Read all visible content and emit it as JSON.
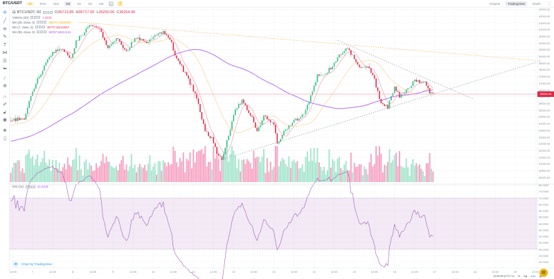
{
  "toolbar": {
    "symbol": "BTC/USDT",
    "type_pill": "1h",
    "time_label": "Time",
    "intervals": [
      "15m",
      "1H",
      "4H",
      "1D",
      "1W"
    ],
    "selected_interval": "1H"
  },
  "view_tabs": [
    "Original",
    "TradingView",
    "Depth"
  ],
  "selected_view": "TradingView",
  "legend": {
    "title": "BTCUSDT, 60",
    "o_label": "O",
    "o": "36713.85",
    "h_label": "H",
    "h": "36717.00",
    "l_label": "L",
    "l": "36250.00",
    "c_label": "C",
    "c": "36264.96",
    "volume_label": "Volume (20)",
    "volume": "1.342K",
    "ma25_label": "MA (25, close, 0)",
    "ma25": "36870.74600000",
    "ma7_label": "MA (7, close, 0)",
    "ma7": "36770.36142857",
    "ma99_label": "MA (99, close, 0)",
    "ma99": "36757.84212121",
    "rsi_label": "RSI (14)",
    "rsi": "42.2318"
  },
  "colors": {
    "up": "#2ebd85",
    "down": "#e0294a",
    "vol_up": "#a3e4cc",
    "vol_down": "#f7a0c0",
    "ma7": "#f4a3ad",
    "ma25": "#f8d596",
    "ma99": "#b46ef5",
    "rsi": "#a05cb8",
    "last_price_line": "#f5a6b1",
    "trend_orange": "#f5b25a",
    "trend_gray": "#8e9ba3"
  },
  "chart_data": {
    "type": "candlestick",
    "symbol": "BTCUSDT",
    "interval": "60",
    "last_price": "36264.96",
    "price_ticks": [
      "42500.00",
      "42000.00",
      "41500.00",
      "41000.00",
      "40500.00",
      "40000.00",
      "39500.00",
      "39000.00",
      "38500.00",
      "38000.00",
      "37500.00",
      "37000.00",
      "36500.00",
      "36000.00",
      "35500.00",
      "35000.00",
      "34500.00",
      "34000.00",
      "33500.00",
      "33000.00",
      "32500.00",
      "32000.00",
      "31500.00",
      "31000.00",
      "30500.00",
      "30000.00"
    ],
    "rsi_ticks": [
      "80.0000",
      "75.0000",
      "70.0000",
      "65.0000",
      "60.0000",
      "55.0000",
      "50.0000",
      "45.0000",
      "40.0000",
      "35.0000",
      "30.0000",
      "25.0000",
      "20.0000"
    ],
    "rsi_band": [
      30,
      70
    ],
    "time_labels": [
      "12:00",
      "7",
      "12:00",
      "8",
      "12:00",
      "9",
      "12:00",
      "10",
      "12:00",
      "11",
      "12:00",
      "12",
      "12:00",
      "13",
      "12:00",
      "14",
      "12:00",
      "15",
      "12:00",
      "16",
      "12:00",
      "17",
      "12:00",
      "18",
      "12:00",
      "19",
      "12:00"
    ],
    "close_path": [
      [
        6,
        11,
        34190
      ],
      [
        6,
        19,
        34440
      ],
      [
        6,
        23,
        35990
      ],
      [
        7,
        3,
        37280
      ],
      [
        7,
        12,
        39340
      ],
      [
        7,
        18,
        39490
      ],
      [
        7,
        23,
        38820
      ],
      [
        8,
        2,
        40110
      ],
      [
        8,
        10,
        41290
      ],
      [
        8,
        16,
        41140
      ],
      [
        8,
        21,
        39590
      ],
      [
        9,
        3,
        40370
      ],
      [
        9,
        8,
        39340
      ],
      [
        9,
        13,
        40370
      ],
      [
        9,
        21,
        40110
      ],
      [
        10,
        6,
        40880
      ],
      [
        10,
        10,
        40370
      ],
      [
        10,
        13,
        39080
      ],
      [
        10,
        20,
        37530
      ],
      [
        11,
        2,
        35990
      ],
      [
        11,
        7,
        33410
      ],
      [
        11,
        11,
        32900
      ],
      [
        11,
        14,
        31870
      ],
      [
        11,
        17,
        31350
      ],
      [
        11,
        21,
        33160
      ],
      [
        12,
        1,
        34960
      ],
      [
        12,
        5,
        35730
      ],
      [
        12,
        10,
        34700
      ],
      [
        12,
        14,
        33410
      ],
      [
        12,
        18,
        34550
      ],
      [
        13,
        0,
        33930
      ],
      [
        13,
        2,
        32490
      ],
      [
        13,
        6,
        33410
      ],
      [
        13,
        12,
        34190
      ],
      [
        13,
        18,
        34700
      ],
      [
        13,
        22,
        35990
      ],
      [
        14,
        2,
        37530
      ],
      [
        14,
        7,
        37790
      ],
      [
        14,
        11,
        38310
      ],
      [
        14,
        15,
        39080
      ],
      [
        14,
        19,
        39590
      ],
      [
        14,
        23,
        39080
      ],
      [
        15,
        4,
        38050
      ],
      [
        15,
        8,
        38310
      ],
      [
        15,
        12,
        37280
      ],
      [
        15,
        16,
        35470
      ],
      [
        15,
        20,
        35220
      ],
      [
        16,
        0,
        36760
      ],
      [
        16,
        3,
        35990
      ],
      [
        16,
        8,
        36500
      ],
      [
        16,
        12,
        37280
      ],
      [
        16,
        15,
        37120
      ],
      [
        16,
        18,
        37020
      ],
      [
        16,
        21,
        36350
      ],
      [
        16,
        23,
        36264.96
      ]
    ],
    "drawings": [
      {
        "style": "orange-dotted",
        "from": [
          8,
          4,
          41550
        ],
        "to": [
          19,
          15,
          38670
        ]
      },
      {
        "style": "gray-dotted",
        "from": [
          14,
          14,
          40210
        ],
        "to": [
          17,
          23,
          35835
        ]
      },
      {
        "style": "gray-dotted",
        "from": [
          11,
          16,
          31300
        ],
        "to": [
          19,
          15,
          38670
        ]
      }
    ]
  },
  "footer": {
    "credit": "Chart by TradingView",
    "clock": "23:59:59 (UTC+1)",
    "percent": "%",
    "log": "log",
    "auto": "auto"
  }
}
